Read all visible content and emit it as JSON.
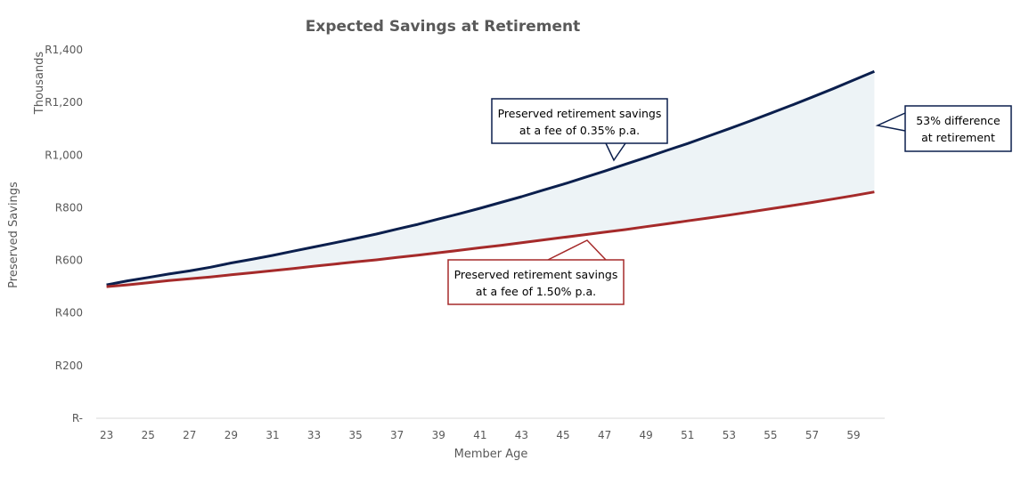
{
  "chart_data": {
    "type": "line",
    "title": "Expected Savings at Retirement",
    "xlabel": "Member Age",
    "ylabel": "Preserved Savings",
    "yunit_label": "Thousands",
    "xlim": [
      23,
      60
    ],
    "ylim": [
      0,
      1400
    ],
    "ytick_values": [
      0,
      200,
      400,
      600,
      800,
      1000,
      1200,
      1400
    ],
    "ytick_labels": [
      "R-",
      "R200",
      "R400",
      "R600",
      "R800",
      "R1,000",
      "R1,200",
      "R1,400"
    ],
    "xtick_labels": [
      "23",
      "25",
      "27",
      "29",
      "31",
      "33",
      "35",
      "37",
      "39",
      "41",
      "43",
      "45",
      "47",
      "49",
      "51",
      "53",
      "55",
      "57",
      "59"
    ],
    "x": [
      23,
      24,
      25,
      26,
      27,
      28,
      29,
      30,
      31,
      32,
      33,
      34,
      35,
      36,
      37,
      38,
      39,
      40,
      41,
      42,
      43,
      44,
      45,
      46,
      47,
      48,
      49,
      50,
      51,
      52,
      53,
      54,
      55,
      56,
      57,
      58,
      59,
      60
    ],
    "series": [
      {
        "name": "Preserved retirement savings at a fee of 0.35% p.a.",
        "color": "#0b1f4d",
        "values": [
          507,
          522,
          535,
          548,
          560,
          574,
          590,
          604,
          619,
          635,
          651,
          667,
          683,
          700,
          719,
          737,
          757,
          777,
          798,
          820,
          842,
          866,
          889,
          914,
          939,
          965,
          991,
          1018,
          1044,
          1072,
          1100,
          1129,
          1159,
          1189,
          1220,
          1252,
          1285,
          1318
        ]
      },
      {
        "name": "Preserved retirement savings at a fee of 1.50% p.a.",
        "color": "#a52a2a",
        "values": [
          500,
          507,
          515,
          523,
          530,
          537,
          545,
          553,
          561,
          569,
          578,
          586,
          594,
          602,
          611,
          620,
          629,
          638,
          648,
          657,
          667,
          677,
          687,
          697,
          707,
          717,
          728,
          739,
          750,
          761,
          772,
          784,
          796,
          808,
          820,
          833,
          846,
          860
        ]
      }
    ],
    "fill_between_color": "#edf3f6",
    "annotations": [
      {
        "text_lines": [
          "Preserved retirement savings",
          "at a fee of 0.35% p.a."
        ],
        "border_color": "#0b1f4d"
      },
      {
        "text_lines": [
          "Preserved retirement savings",
          "at a fee of 1.50% p.a."
        ],
        "border_color": "#a52a2a"
      },
      {
        "text_lines": [
          "53% difference",
          "at retirement"
        ],
        "border_color": "#0b1f4d"
      }
    ]
  }
}
